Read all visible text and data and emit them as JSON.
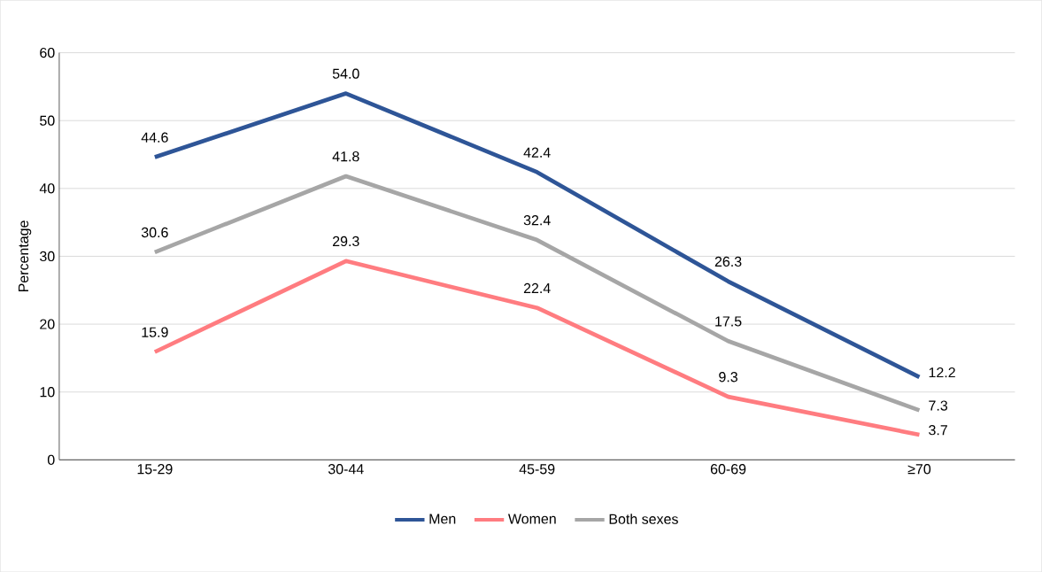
{
  "chart_data": {
    "type": "line",
    "ylabel": "Percentage",
    "categories": [
      "15-29",
      "30-44",
      "45-59",
      "60-69",
      "≥70"
    ],
    "ylim": [
      0,
      60
    ],
    "yticks": [
      0,
      10,
      20,
      30,
      40,
      50,
      60
    ],
    "grid": "y",
    "legend": "bottom",
    "marker": "none",
    "line_style": "solid",
    "series": [
      {
        "name": "Men",
        "color": "#2e5597",
        "values": [
          44.6,
          54.0,
          42.4,
          26.3,
          12.2
        ],
        "value_labels": [
          "44.6",
          "54.0",
          "42.4",
          "26.3",
          "12.2"
        ]
      },
      {
        "name": "Women",
        "color": "#ff7c80",
        "values": [
          15.9,
          29.3,
          22.4,
          9.3,
          3.7
        ],
        "value_labels": [
          "15.9",
          "29.3",
          "22.4",
          "9.3",
          "3.7"
        ]
      },
      {
        "name": "Both sexes",
        "color": "#a6a6a6",
        "values": [
          30.6,
          41.8,
          32.4,
          17.5,
          7.3
        ],
        "value_labels": [
          "30.6",
          "41.8",
          "32.4",
          "17.5",
          "7.3"
        ]
      }
    ]
  }
}
